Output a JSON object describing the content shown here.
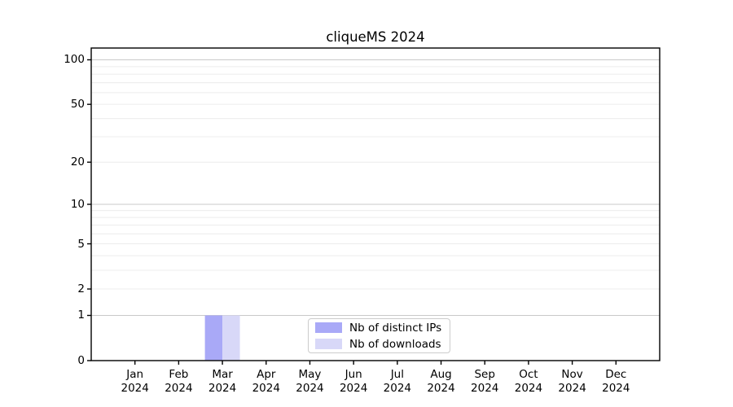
{
  "chart_data": {
    "type": "bar",
    "title": "cliqueMS 2024",
    "categories": [
      "Jan 2024",
      "Feb 2024",
      "Mar 2024",
      "Apr 2024",
      "May 2024",
      "Jun 2024",
      "Jul 2024",
      "Aug 2024",
      "Sep 2024",
      "Oct 2024",
      "Nov 2024",
      "Dec 2024"
    ],
    "series": [
      {
        "name": "Nb of distinct IPs",
        "color": "#a9a9f7",
        "values": [
          0,
          0,
          1,
          0,
          0,
          0,
          0,
          0,
          0,
          0,
          0,
          0
        ]
      },
      {
        "name": "Nb of downloads",
        "color": "#d8d8f8",
        "values": [
          0,
          0,
          1,
          0,
          0,
          0,
          0,
          0,
          0,
          0,
          0,
          0
        ]
      }
    ],
    "xlabel": "",
    "ylabel": "",
    "yscale": "log1p",
    "ylim": [
      0,
      120
    ],
    "yticks": [
      0,
      1,
      2,
      5,
      10,
      20,
      50,
      100
    ],
    "major_gridlines": [
      1,
      10,
      100
    ],
    "minor_gridlines": [
      2,
      3,
      4,
      5,
      6,
      7,
      8,
      9,
      20,
      30,
      40,
      50,
      60,
      70,
      80,
      90
    ],
    "grid": "on",
    "legend_position": "inside-bottom-center",
    "colors": {
      "axis": "#000000",
      "grid_major": "#c9c9c9",
      "grid_minor": "#ececec",
      "legend_border": "#cccccc",
      "background": "#ffffff"
    }
  }
}
